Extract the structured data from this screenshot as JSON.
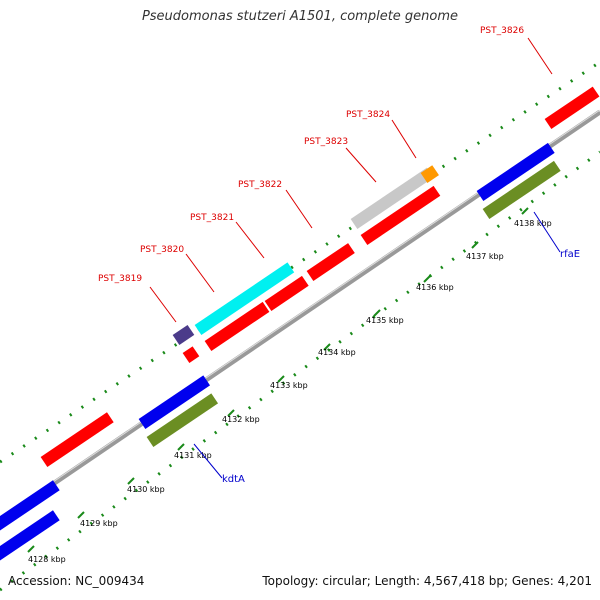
{
  "title": "Pseudomonas stutzeri A1501, complete genome",
  "footer": {
    "accession": "Accession: NC_009434",
    "summary": "Topology: circular; Length: 4,567,418 bp; Genes: 4,201"
  },
  "ticks": [
    "4128 kbp",
    "4129 kbp",
    "4130 kbp",
    "4131 kbp",
    "4132 kbp",
    "4133 kbp",
    "4134 kbp",
    "4135 kbp",
    "4136 kbp",
    "4137 kbp",
    "4138 kbp"
  ],
  "gene_labels": [
    "PST_3819",
    "PST_3820",
    "PST_3821",
    "PST_3822",
    "PST_3823",
    "PST_3824",
    "PST_3826"
  ],
  "feature_labels": [
    "kdtA",
    "rfaE"
  ],
  "colors": {
    "cds": "#ff0000",
    "blue": "#0000ee",
    "olive": "#6b8e23",
    "cyan": "#00f0f0",
    "grey": "#c8c8c8",
    "orange": "#ff9900",
    "purple": "#4b3b8a",
    "backbone": "#999999",
    "green_dots": "#1a8a1a",
    "gene_label": "#dd0000",
    "feature_label": "#0000cc"
  }
}
